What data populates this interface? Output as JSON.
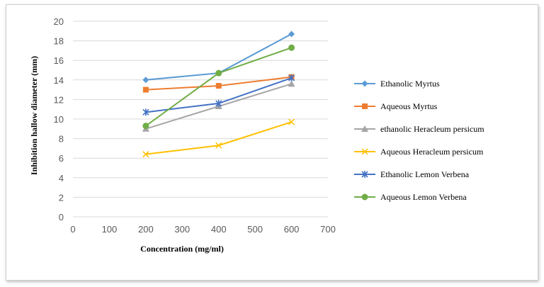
{
  "chart_data": {
    "type": "line",
    "title": "",
    "xlabel": "Concentration  (mg/ml)",
    "ylabel": "Inhibition hallow diameter  (mm)",
    "xlim": [
      0,
      700
    ],
    "ylim": [
      0,
      20
    ],
    "xticks": [
      "0",
      "100",
      "200",
      "300",
      "400",
      "500",
      "600",
      "700"
    ],
    "yticks": [
      "0",
      "2",
      "4",
      "6",
      "8",
      "10",
      "12",
      "14",
      "16",
      "18",
      "20"
    ],
    "grid": "horizontal",
    "legend_position": "right",
    "series": [
      {
        "name": "Ethanolic  Myrtus",
        "x": [
          200,
          400,
          600
        ],
        "y": [
          14.0,
          14.7,
          18.7
        ],
        "color": "#5b9bd5",
        "marker": "diamond"
      },
      {
        "name": "Aqueous  Myrtus",
        "x": [
          200,
          400,
          600
        ],
        "y": [
          13.0,
          13.4,
          14.3
        ],
        "color": "#ed7d31",
        "marker": "square"
      },
      {
        "name": "ethanolic  Heracleum  persicum",
        "x": [
          200,
          400,
          600
        ],
        "y": [
          9.0,
          11.3,
          13.6
        ],
        "color": "#a5a5a5",
        "marker": "triangle"
      },
      {
        "name": "Aqueous  Heracleum  persicum",
        "x": [
          200,
          400,
          600
        ],
        "y": [
          6.4,
          7.3,
          9.7
        ],
        "color": "#ffc000",
        "marker": "star"
      },
      {
        "name": "Ethanolic  Lemon  Verbena",
        "x": [
          200,
          400,
          600
        ],
        "y": [
          10.7,
          11.6,
          14.2
        ],
        "color": "#4472c4",
        "marker": "asterisk"
      },
      {
        "name": "Aqueous  Lemon  Verbena",
        "x": [
          200,
          400,
          600
        ],
        "y": [
          9.3,
          14.7,
          17.3
        ],
        "color": "#70ad47",
        "marker": "circle"
      }
    ]
  }
}
